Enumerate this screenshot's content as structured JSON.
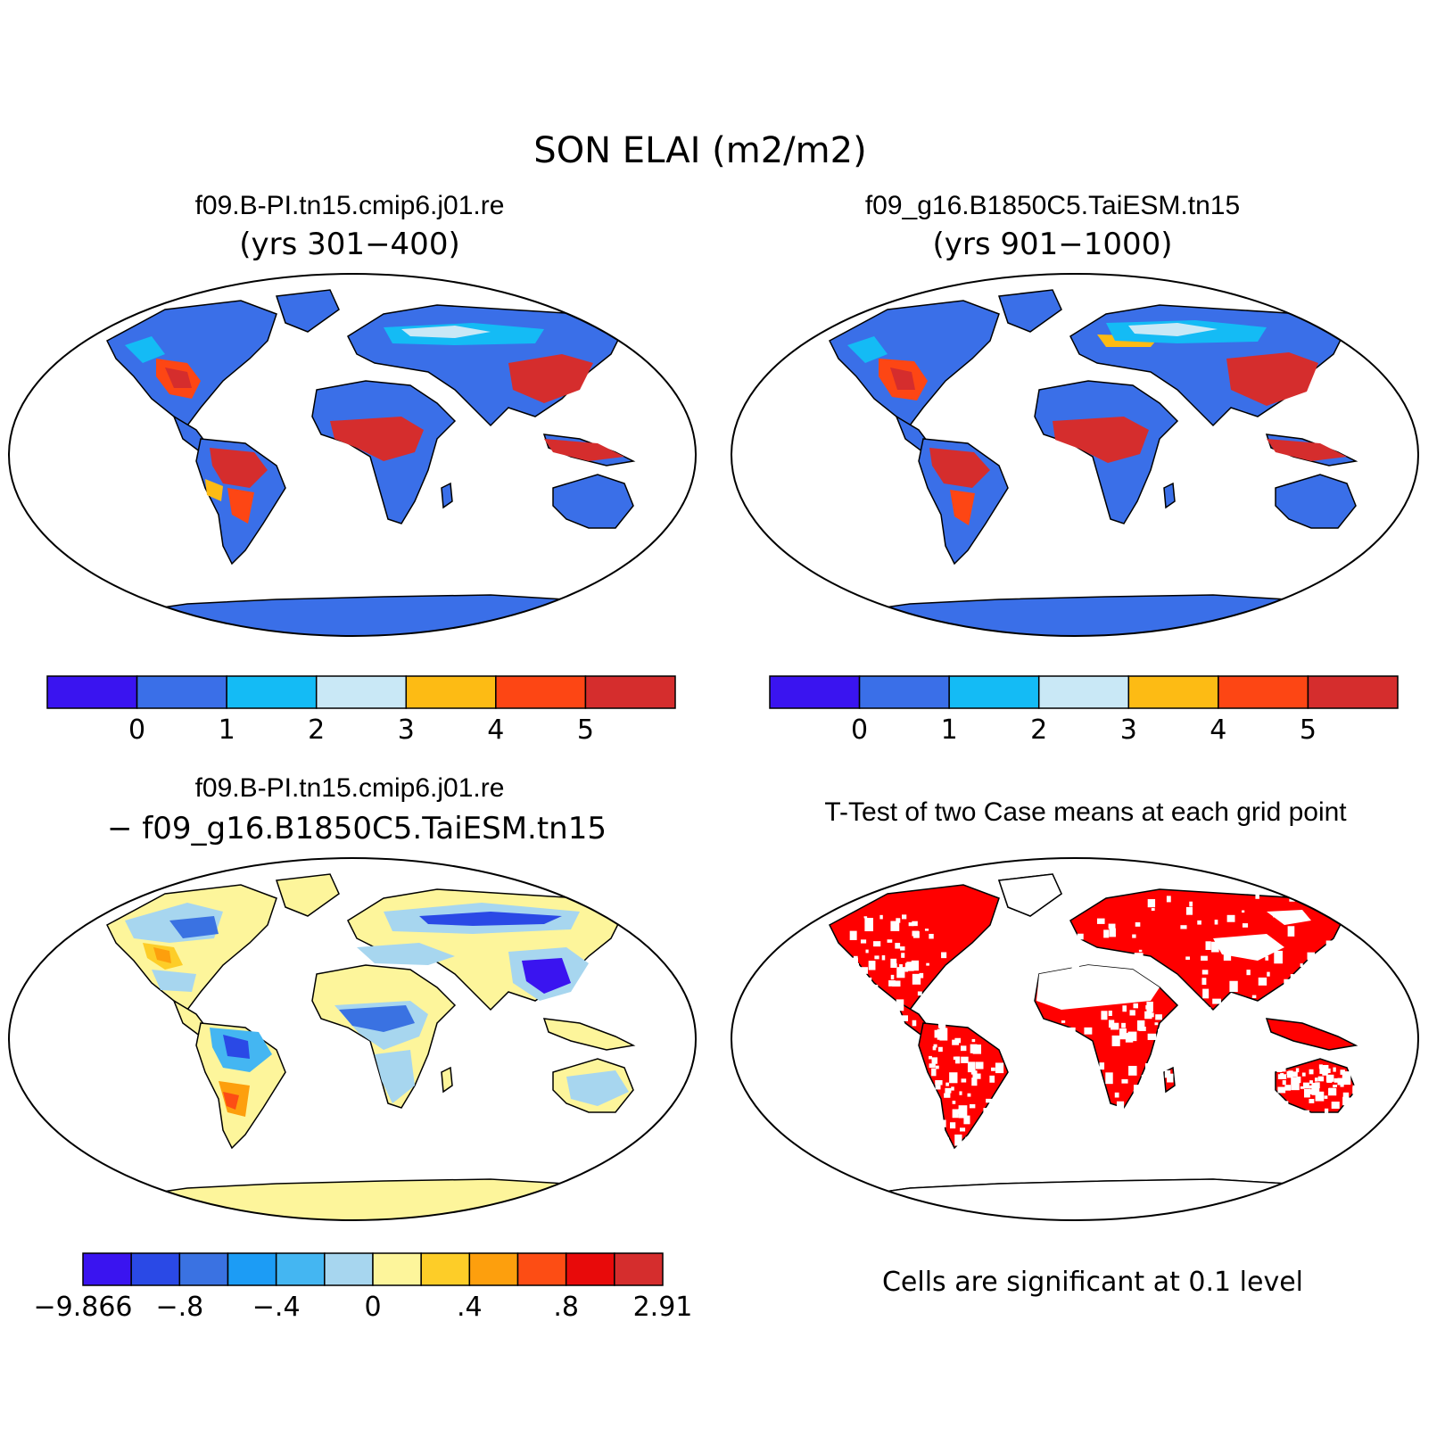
{
  "title": "SON ELAI (m2/m2)",
  "panels": {
    "case1": {
      "name": "f09.B-PI.tn15.cmip6.j01.re",
      "years": "(yrs 301−400)"
    },
    "case2": {
      "name": "f09_g16.B1850C5.TaiESM.tn15",
      "years": "(yrs 901−1000)"
    },
    "diff": {
      "line1": "f09.B-PI.tn15.cmip6.j01.re",
      "line2": "− f09_g16.B1850C5.TaiESM.tn15"
    },
    "ttest": {
      "title": "T-Test of two Case means at each grid point",
      "note": "Cells are significant at 0.1 level"
    }
  },
  "colorbars": {
    "levels": {
      "colors": [
        "#3a14f0",
        "#3a6fe8",
        "#14bbf5",
        "#c9e8f6",
        "#fdbb14",
        "#fd4614",
        "#d52d2d"
      ],
      "labels": [
        "0",
        "1",
        "2",
        "3",
        "4",
        "5"
      ]
    },
    "diff": {
      "colors": [
        "#3a14f0",
        "#2a49e6",
        "#3a72e2",
        "#1c9cf5",
        "#44b6f2",
        "#a7d6ef",
        "#fdf59b",
        "#fdcd28",
        "#fd9f0d",
        "#fd4d14",
        "#e80a0a",
        "#d52d2d"
      ],
      "labels": [
        "−9.866",
        "−.8",
        "−.4",
        "0",
        ".4",
        ".8",
        "2.91"
      ]
    }
  },
  "map_colors": {
    "land_base_level": "#3a6fe8",
    "land_base_diff": "#fdf59b",
    "significant": "#ff0000",
    "high_lai": "#d52d2d"
  }
}
